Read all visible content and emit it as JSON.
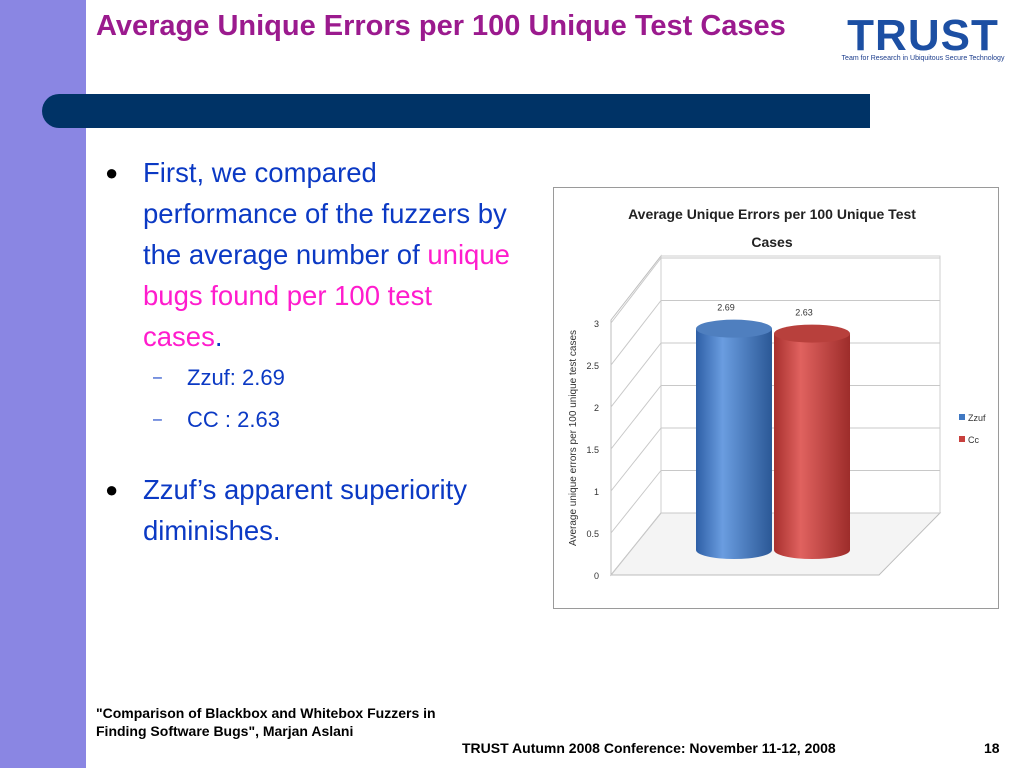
{
  "slide": {
    "title": "Average Unique Errors per 100 Unique Test Cases",
    "logo_text": "TRUST",
    "logo_tagline": "Team for Research in Ubiquitous Secure Technology",
    "bullet1_pre": "First, we compared performance of the fuzzers by the average number of ",
    "bullet1_highlight": "unique bugs found per 100 test cases",
    "bullet1_post": ".",
    "sub_bullets": [
      "Zzuf: 2.69",
      "CC : 2.63"
    ],
    "bullet2": "Zzuf’s apparent superiority diminishes.",
    "bullet_char": "●",
    "dash_char": "–",
    "footer_left": "\"Comparison of Blackbox and Whitebox Fuzzers in Finding Software Bugs\", Marjan Aslani",
    "footer_center": "TRUST Autumn 2008 Conference: November 11-12, 2008",
    "page_number": "18",
    "colors": {
      "title": "#9b1a8e",
      "band": "#003366",
      "sidebar": "#8a86e3",
      "body_text": "#0b39c4",
      "highlight": "#ff1ccd"
    }
  },
  "chart_data": {
    "type": "bar",
    "title": "Average Unique Errors per 100 Unique Test Cases",
    "ylabel": "Average unique errors per 100 unique test cases",
    "xlabel": "",
    "categories": [
      ""
    ],
    "series": [
      {
        "name": "Zzuf",
        "values": [
          2.69
        ],
        "color": "#3f78c2"
      },
      {
        "name": "Cc",
        "values": [
          2.63
        ],
        "color": "#c8403d"
      }
    ],
    "data_labels": [
      "2.69",
      "2.63"
    ],
    "yticks": [
      "0",
      "0.5",
      "1",
      "1.5",
      "2",
      "2.5",
      "3"
    ],
    "ylim": [
      0,
      3
    ],
    "legend": "right",
    "style": "3d-cylinder"
  }
}
